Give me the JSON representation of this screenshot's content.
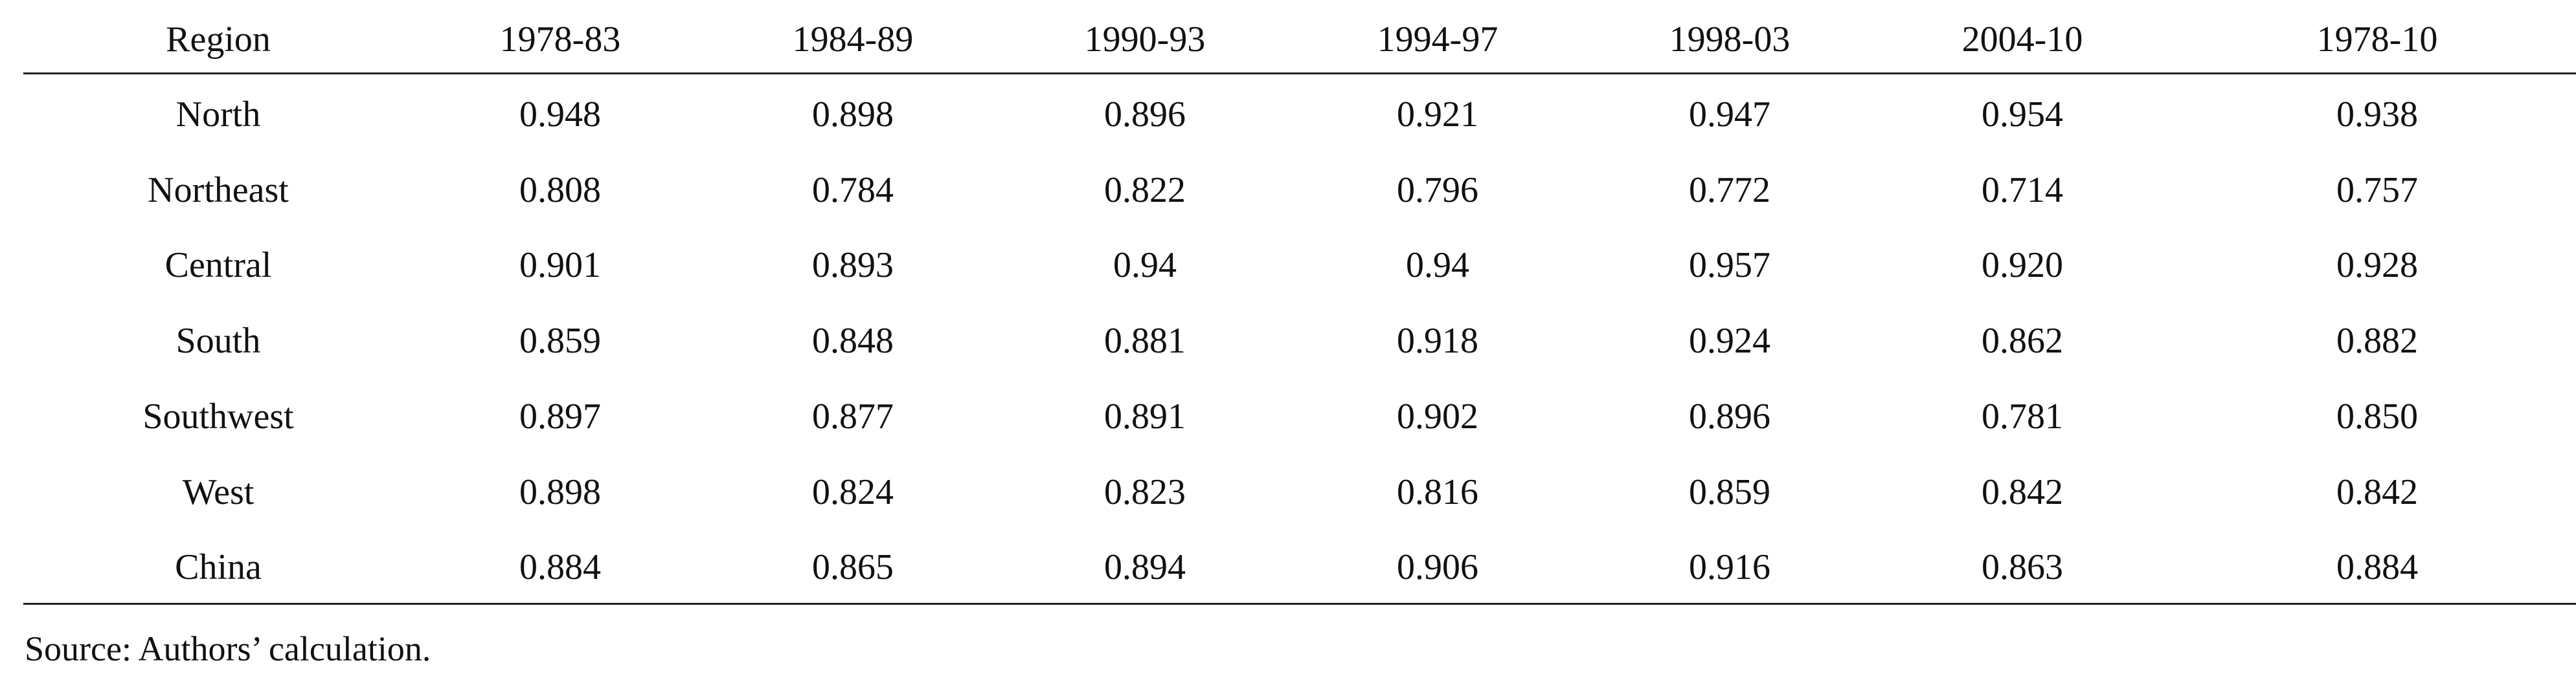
{
  "table": {
    "header": [
      "Region",
      "1978-83",
      "1984-89",
      "1990-93",
      "1994-97",
      "1998-03",
      "2004-10",
      "1978-10"
    ],
    "rows": [
      [
        "North",
        "0.948",
        "0.898",
        "0.896",
        "0.921",
        "0.947",
        "0.954",
        "0.938"
      ],
      [
        "Northeast",
        "0.808",
        "0.784",
        "0.822",
        "0.796",
        "0.772",
        "0.714",
        "0.757"
      ],
      [
        "Central",
        "0.901",
        "0.893",
        "0.94",
        "0.94",
        "0.957",
        "0.920",
        "0.928"
      ],
      [
        "South",
        "0.859",
        "0.848",
        "0.881",
        "0.918",
        "0.924",
        "0.862",
        "0.882"
      ],
      [
        "Southwest",
        "0.897",
        "0.877",
        "0.891",
        "0.902",
        "0.896",
        "0.781",
        "0.850"
      ],
      [
        "West",
        "0.898",
        "0.824",
        "0.823",
        "0.816",
        "0.859",
        "0.842",
        "0.842"
      ],
      [
        "China",
        "0.884",
        "0.865",
        "0.894",
        "0.906",
        "0.916",
        "0.863",
        "0.884"
      ]
    ]
  },
  "source": "Source: Authors’ calculation."
}
